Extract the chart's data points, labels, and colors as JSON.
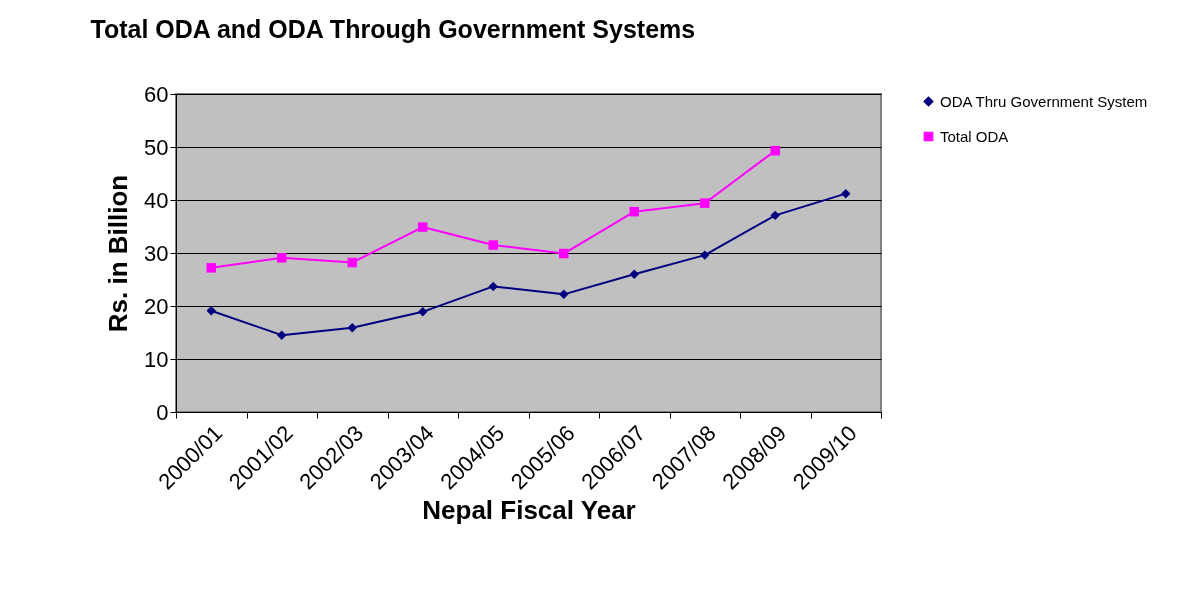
{
  "chart_data": {
    "type": "line",
    "title": "Total ODA and ODA Through Government Systems",
    "xlabel": "Nepal Fiscal Year",
    "ylabel": "Rs. in Billion",
    "categories": [
      "2000/01",
      "2001/02",
      "2002/03",
      "2003/04",
      "2004/05",
      "2005/06",
      "2006/07",
      "2007/08",
      "2008/09",
      "2009/10"
    ],
    "series": [
      {
        "name": "ODA Thru Government System",
        "color": "#000080",
        "marker": "diamond",
        "values": [
          19.1,
          14.5,
          15.9,
          18.9,
          23.7,
          22.2,
          26.0,
          29.6,
          37.1,
          41.2
        ]
      },
      {
        "name": "Total ODA",
        "color": "#ff00ff",
        "marker": "square",
        "values": [
          27.2,
          29.1,
          28.2,
          34.9,
          31.5,
          29.9,
          37.8,
          39.4,
          49.3,
          null
        ]
      }
    ],
    "ylim": [
      0,
      60
    ],
    "yticks": [
      0,
      10,
      20,
      30,
      40,
      50,
      60
    ],
    "grid": "y",
    "legend": "right",
    "line_style": "solid"
  }
}
